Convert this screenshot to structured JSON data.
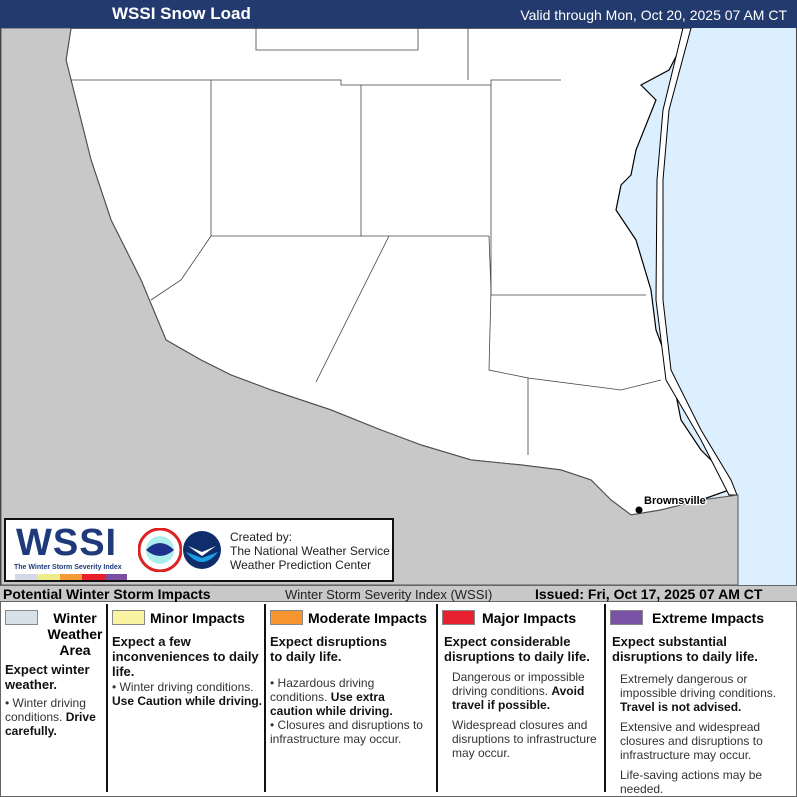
{
  "header": {
    "title": "WSSI Snow Load",
    "valid": "Valid through Mon, Oct 20, 2025 07 AM CT"
  },
  "map": {
    "city": "Brownsville",
    "colors": {
      "land": "#ffffff",
      "outside": "#c8c8c8",
      "water": "#dcefff"
    }
  },
  "logo": {
    "wordmark": "WSSI",
    "subtitle": "The Winter Storm Severity Index",
    "created_by": "Created by:",
    "org1": "The National Weather Service",
    "org2": "Weather Prediction Center",
    "bar_colors": [
      "#d4d9e8",
      "#ecec8c",
      "#f59b38",
      "#e8202b",
      "#7b4ea3"
    ]
  },
  "band": {
    "title": "Potential Winter Storm Impacts",
    "index": "Winter Storm Severity Index (WSSI)",
    "issued": "Issued: Fri, Oct 17, 2025 07 AM CT"
  },
  "legend": [
    {
      "title": "Winter Weather Area",
      "color": "#d6e1ea",
      "expect": "Expect winter weather.",
      "b1a": "Winter driving conditions.",
      "b1b": "Drive carefully."
    },
    {
      "title": "Minor Impacts",
      "color": "#f8f4a2",
      "expect": "Expect a few inconveniences to daily life.",
      "b1a": "Winter driving conditions.",
      "b1b": "Use Caution while driving."
    },
    {
      "title": "Moderate Impacts",
      "color": "#f7952f",
      "expect": "Expect disruptions to daily life.",
      "b1a": "Hazardous driving conditions.",
      "b1b": "Use extra caution while driving.",
      "b2": "Closures and disruptions to infrastructure may occur."
    },
    {
      "title": "Major Impacts",
      "color": "#e7212f",
      "expect": "Expect considerable disruptions to daily life.",
      "b1a": "Dangerous or impossible driving conditions.",
      "b1b": "Avoid travel if possible.",
      "b2": "Widespread closures and disruptions to infrastructure may occur."
    },
    {
      "title": "Extreme Impacts",
      "color": "#7a52a5",
      "expect": "Expect substantial disruptions to daily life.",
      "b1a": "Extremely dangerous or impossible driving conditions.",
      "b1b": "Travel is not advised.",
      "b2": "Extensive and widespread closures and disruptions to infrastructure may occur.",
      "b3": "Life-saving actions may be needed."
    }
  ]
}
